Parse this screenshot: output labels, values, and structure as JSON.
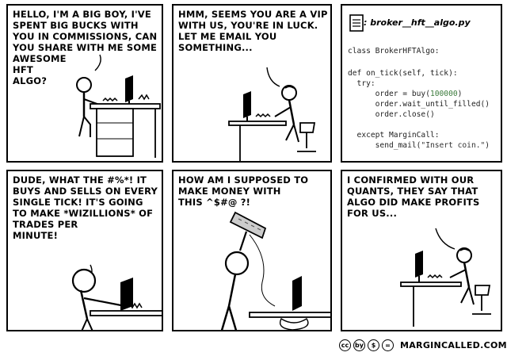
{
  "panels": [
    {
      "caption": "HELLO, I'M A BIG BOY, I'VE\nSPENT BIG BUCKS WITH\nYOU IN COMMISSIONS, CAN\nYOU SHARE WITH ME SOME\nAWESOME\nHFT\nALGO?"
    },
    {
      "caption": "HMM, SEEMS YOU ARE A VIP\nWITH US, YOU'RE IN LUCK.\nLET ME EMAIL YOU\nSOMETHING..."
    },
    {
      "filename": ": broker__hft__algo.py",
      "code": {
        "l1": "class BrokerHFTAlgo:",
        "l2": "def on_tick(self, tick):",
        "l3": "  try:",
        "l4a": "      order = buy(",
        "l4n": "100000",
        "l4b": ")",
        "l5": "      order.wait_until_filled()",
        "l6": "      order.close()",
        "l7": "  except MarginCall:",
        "l8a": "      send_mail(",
        "l8s": "\"Insert coin.\"",
        "l8b": ")"
      }
    },
    {
      "caption": "DUDE, WHAT THE #%*! IT\nBUYS AND SELLS ON EVERY\nSINGLE TICK! IT'S GOING\nTO MAKE *WIZILLIONS* OF\nTRADES PER\nMINUTE!"
    },
    {
      "caption": "HOW AM I SUPPOSED TO\nMAKE MONEY WITH\nTHIS ^$#@ ?!"
    },
    {
      "caption": "I CONFIRMED WITH OUR\nQUANTS, THEY SAY THAT\nALGO DID MAKE PROFITS\nFOR US..."
    }
  ],
  "footer": {
    "license_icons": [
      "cc",
      "by",
      "$",
      "="
    ],
    "site": "MARGINCALLED.COM"
  }
}
